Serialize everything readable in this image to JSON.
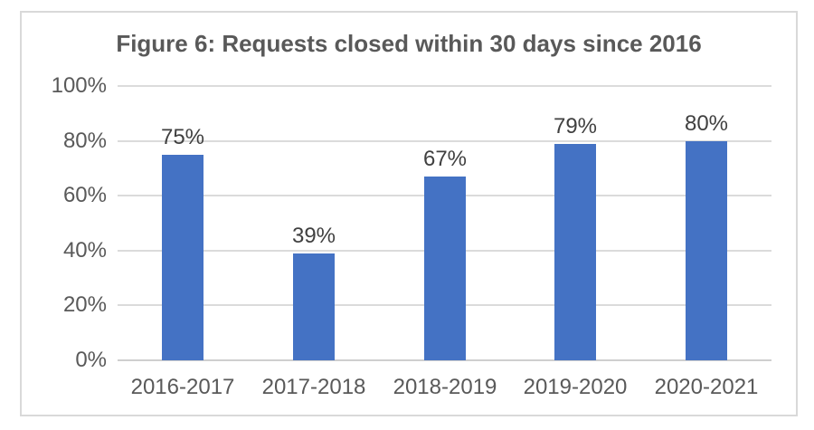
{
  "chart": {
    "title": "Figure 6: Requests closed within 30 days since 2016"
  },
  "chart_data": {
    "type": "bar",
    "title": "Figure 6: Requests closed within 30 days since 2016",
    "categories": [
      "2016-2017",
      "2017-2018",
      "2018-2019",
      "2019-2020",
      "2020-2021"
    ],
    "values": [
      75,
      39,
      67,
      79,
      80
    ],
    "data_labels": [
      "75%",
      "39%",
      "67%",
      "79%",
      "80%"
    ],
    "xlabel": "",
    "ylabel": "",
    "ylim": [
      0,
      100
    ],
    "ytick_step": 20,
    "ytick_labels": [
      "0%",
      "20%",
      "40%",
      "60%",
      "80%",
      "100%"
    ],
    "grid": "horizontal",
    "legend": "none",
    "colors": {
      "bar": "#4472C4",
      "title_text": "#595959",
      "axis_text": "#595959",
      "data_label_text": "#404040",
      "gridline": "#DBDBDB",
      "axis_line": "#CFCFCF",
      "frame_border": "#D9D9D9",
      "background": "#FFFFFF"
    }
  }
}
